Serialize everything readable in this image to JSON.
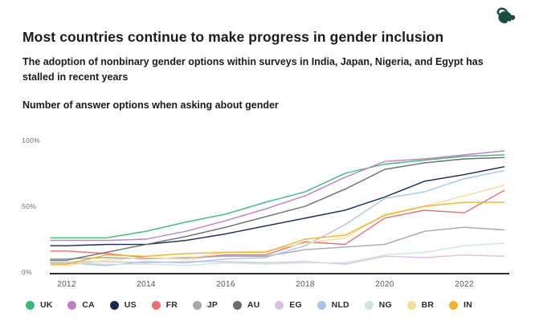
{
  "header": {
    "title": "Most countries continue to make progress in gender inclusion",
    "subtitle": "The adoption of nonbinary gender options within surveys in India, Japan, Nigeria, and Egypt has stalled in recent years",
    "measure_label": "Number of answer options when asking about gender",
    "logo": {
      "name": "surveymonkey-monkey-logo",
      "color": "#1d4d40"
    }
  },
  "chart_data": {
    "type": "line",
    "title": "Number of answer options when asking about gender",
    "x": [
      2012,
      2013,
      2014,
      2015,
      2016,
      2017,
      2018,
      2019,
      2020,
      2021,
      2022,
      2023
    ],
    "x_ticks": [
      "2012",
      "2014",
      "2016",
      "2018",
      "2020",
      "2022"
    ],
    "y_ticks": [
      "0%",
      "50%",
      "100%"
    ],
    "ylim": [
      0,
      100
    ],
    "grid": false,
    "legend_position": "bottom",
    "series": [
      {
        "name": "UK",
        "color": "#3cb878",
        "values": [
          26,
          26,
          31,
          38,
          44,
          53,
          61,
          75,
          82,
          85,
          88,
          89
        ]
      },
      {
        "name": "CA",
        "color": "#be7fc2",
        "values": [
          24,
          24,
          25,
          31,
          39,
          48,
          58,
          72,
          84,
          86,
          89,
          92
        ]
      },
      {
        "name": "US",
        "color": "#17294d",
        "values": [
          20,
          21,
          21,
          24,
          29,
          35,
          41,
          47,
          57,
          69,
          74,
          80
        ]
      },
      {
        "name": "FR",
        "color": "#ec6e70",
        "values": [
          16,
          14,
          11,
          10,
          13,
          13,
          23,
          21,
          41,
          47,
          45,
          62
        ]
      },
      {
        "name": "JP",
        "color": "#a6a8ab",
        "values": [
          10,
          11,
          10,
          11,
          12,
          12,
          17,
          19,
          21,
          31,
          34,
          32
        ]
      },
      {
        "name": "AU",
        "color": "#6b6d70",
        "values": [
          9,
          15,
          21,
          27,
          34,
          42,
          50,
          63,
          78,
          83,
          86,
          87
        ]
      },
      {
        "name": "EG",
        "color": "#dcc0e4",
        "values": [
          8,
          8,
          7,
          8,
          8,
          7,
          8,
          6,
          12,
          11,
          13,
          12
        ]
      },
      {
        "name": "NLD",
        "color": "#a7c6e8",
        "values": [
          7,
          5,
          8,
          7,
          10,
          11,
          20,
          36,
          56,
          61,
          71,
          77
        ]
      },
      {
        "name": "NG",
        "color": "#cde6da",
        "values": [
          8,
          6,
          6,
          5,
          7,
          6,
          7,
          7,
          13,
          15,
          20,
          22
        ]
      },
      {
        "name": "BR",
        "color": "#f3de9d",
        "values": [
          5,
          9,
          11,
          10,
          15,
          16,
          22,
          26,
          44,
          50,
          58,
          66
        ]
      },
      {
        "name": "IN",
        "color": "#f0b32e",
        "values": [
          6,
          13,
          12,
          14,
          15,
          15,
          25,
          28,
          43,
          50,
          53,
          53
        ]
      }
    ]
  }
}
